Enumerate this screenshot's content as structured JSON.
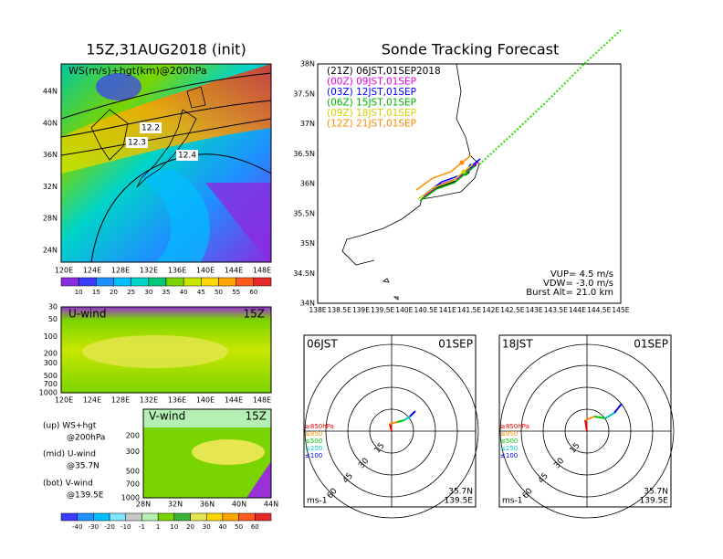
{
  "left": {
    "title": "15Z,31AUG2018 (init)",
    "map": {
      "label": "WS(m/s)+hgt(km)@200hPa",
      "contours": [
        "12.2",
        "12.3",
        "12.4"
      ],
      "lat_labels": [
        "44N",
        "40N",
        "36N",
        "32N",
        "28N",
        "24N"
      ],
      "lon_labels": [
        "120E",
        "124E",
        "128E",
        "132E",
        "136E",
        "140E",
        "144E",
        "148E"
      ]
    },
    "colorbar": {
      "labels": [
        "10",
        "15",
        "20",
        "25",
        "30",
        "35",
        "40",
        "45",
        "50",
        "55",
        "60"
      ],
      "colors": [
        "#8a2be2",
        "#3b3bff",
        "#1e90ff",
        "#00bfff",
        "#00d4c8",
        "#00c878",
        "#7ad400",
        "#c8e600",
        "#ffd700",
        "#ffa500",
        "#ff5a1e",
        "#e62828"
      ]
    },
    "uwind": {
      "label": "U-wind",
      "time": "15Z",
      "p_labels": [
        "30",
        "50",
        "100",
        "200",
        "300",
        "500",
        "700",
        "1000"
      ],
      "lon_labels": [
        "120E",
        "124E",
        "128E",
        "132E",
        "136E",
        "140E",
        "144E",
        "148E"
      ]
    },
    "vwind": {
      "label": "V-wind",
      "time": "15Z",
      "p_labels": [
        "200",
        "300",
        "500",
        "700",
        "1000"
      ],
      "lat_labels": [
        "28N",
        "32N",
        "36N",
        "40N",
        "44N"
      ]
    },
    "notes": [
      "(up) WS+hgt",
      "@200hPa",
      "(mid) U-wind",
      "@35.7N",
      "(bot) V-wind",
      "@139.5E"
    ],
    "colorbar2": {
      "labels": [
        "-40",
        "-30",
        "-20",
        "-10",
        "-1",
        "1",
        "10",
        "20",
        "30",
        "40",
        "50",
        "60"
      ],
      "colors": [
        "#3b3bff",
        "#1e90ff",
        "#00bfff",
        "#7fe6ff",
        "#c8c8c8",
        "#b4f0b4",
        "#7ad400",
        "#3cb43c",
        "#e6e650",
        "#ffd700",
        "#ffa500",
        "#ff5a1e",
        "#e62828"
      ]
    }
  },
  "right": {
    "title": "Sonde Tracking Forecast",
    "lat_labels": [
      "38N",
      "37.5N",
      "37N",
      "36.5N",
      "36N",
      "35.5N",
      "35N",
      "34.5N",
      "34N"
    ],
    "lon_labels": [
      "138E",
      "138.5E",
      "139E",
      "139.5E",
      "140E",
      "140.5E",
      "141E",
      "141.5E",
      "142E",
      "142.5E",
      "143E",
      "143.5E",
      "144E",
      "144.5E",
      "145E"
    ],
    "legend": [
      {
        "text": "(21Z) 06JST,01SEP2018",
        "color": "#000000"
      },
      {
        "text": "(00Z) 09JST,01SEP",
        "color": "#e600e6"
      },
      {
        "text": "(03Z) 12JST,01SEP",
        "color": "#0000ff"
      },
      {
        "text": "(06Z) 15JST,01SEP",
        "color": "#00b400"
      },
      {
        "text": "(09Z) 18JST,01SEP",
        "color": "#d2d200"
      },
      {
        "text": "(12Z) 21JST,01SEP",
        "color": "#ff8c00"
      }
    ],
    "info": [
      "VUP= 4.5 m/s",
      "VDW= -3.0 m/s",
      "Burst Alt= 21.0 km"
    ]
  },
  "hodographs": [
    {
      "time": "06JST",
      "date": "01SEP"
    },
    {
      "time": "18JST",
      "date": "01SEP"
    }
  ],
  "hodo_common": {
    "rings": [
      "15",
      "30",
      "45",
      "60"
    ],
    "levels": [
      {
        "text": "≥850hPa",
        "color": "#ff0000"
      },
      {
        "text": "≤850",
        "color": "#ff8c00"
      },
      {
        "text": "≤500",
        "color": "#00c800"
      },
      {
        "text": "≤250",
        "color": "#00c8c8"
      },
      {
        "text": "≤100",
        "color": "#0000ff"
      }
    ],
    "unit": "ms-1",
    "lat": "35.7N",
    "lon": "139.5E"
  }
}
